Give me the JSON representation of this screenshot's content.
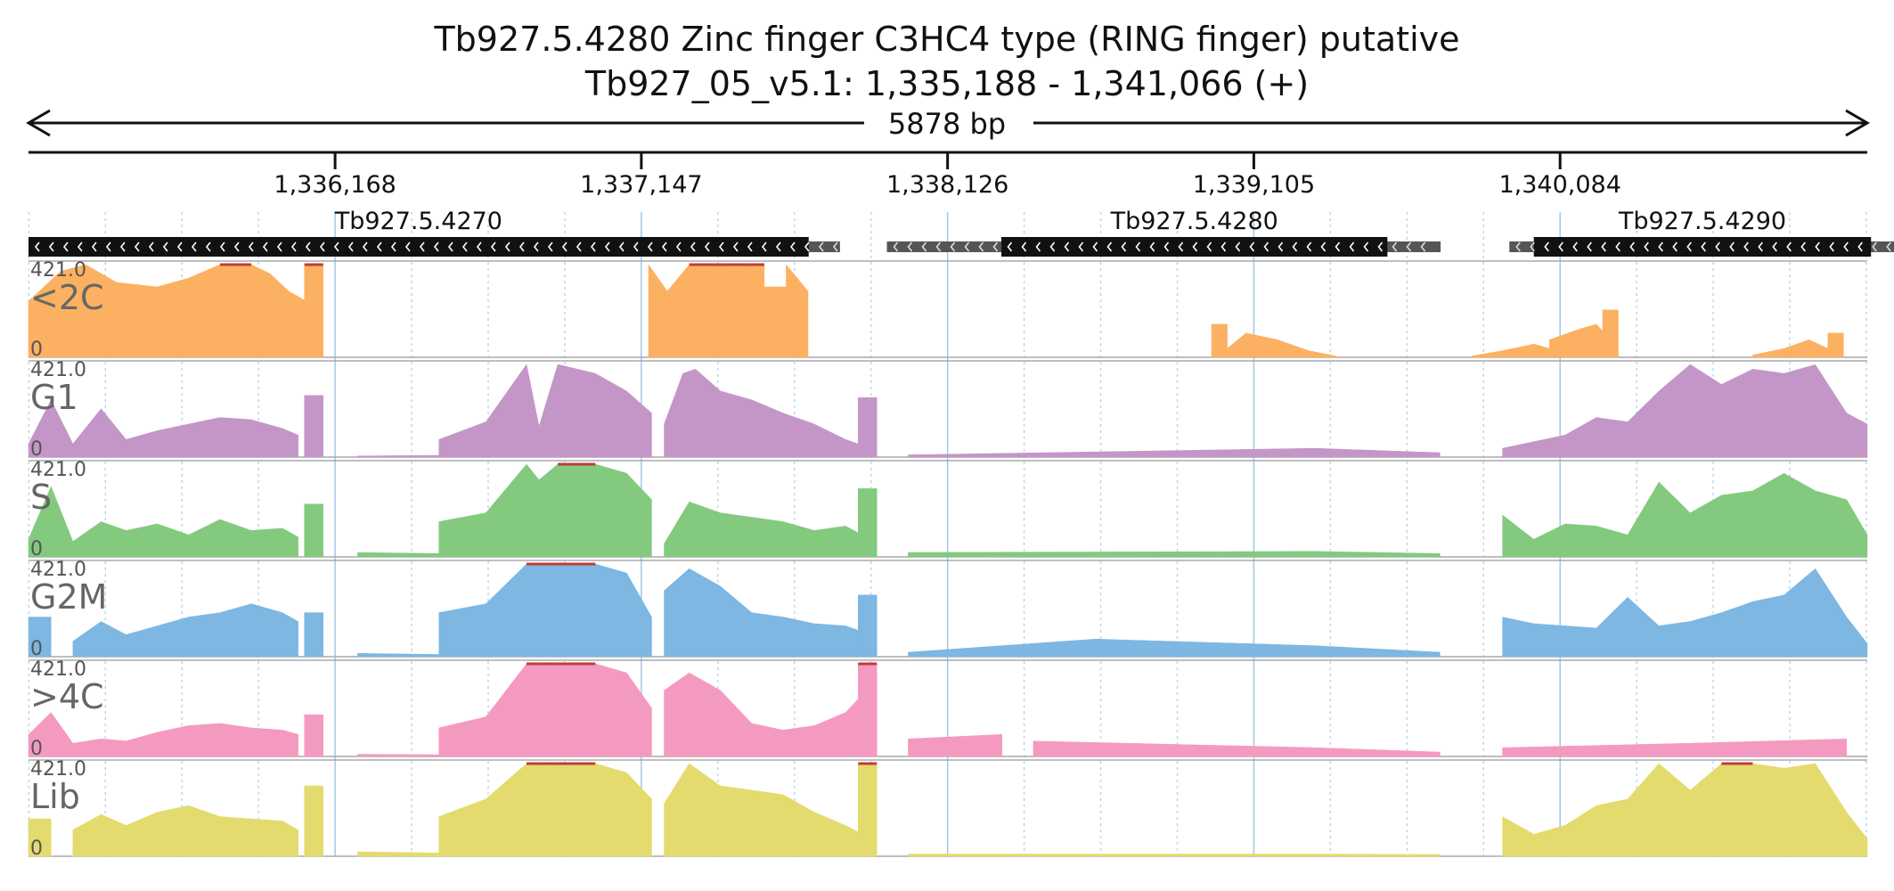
{
  "title_line1": "Tb927.5.4280  Zinc finger  C3HC4 type (RING finger)  putative",
  "title_line2": "Tb927_05_v5.1: 1,335,188 - 1,341,066 (+)",
  "span_label": "5878 bp",
  "chart_data": {
    "type": "area",
    "region_start": 1335188,
    "region_end": 1341066,
    "tick_labels": [
      "1,336,168",
      "1,337,147",
      "1,338,126",
      "1,339,105",
      "1,340,084"
    ],
    "tick_positions": [
      1336168,
      1337147,
      1338126,
      1339105,
      1340084
    ],
    "grid": true,
    "ylim": [
      0,
      421.0
    ],
    "y_top_label": "421.0",
    "y_bottom_label": "0",
    "genes": [
      {
        "name": "Tb927.5.4270",
        "start": 1335188,
        "end": 1337682,
        "utr_end": 1337782,
        "strand": "-"
      },
      {
        "name": "Tb927.5.4280",
        "start": 1338298,
        "end": 1339532,
        "utr_start": 1337932,
        "utr_end": 1339702,
        "strand": "-"
      },
      {
        "name": "Tb927.5.4290",
        "start": 1340000,
        "end": 1341078,
        "utr_start": 1339922,
        "utr_end": 1341176,
        "strand": "-"
      }
    ],
    "tracks": [
      {
        "name": "<2C",
        "color": "#fbb161",
        "segments": [
          {
            "x": [
              1335188,
              1335290,
              1335370,
              1335470,
              1335600,
              1335700,
              1335800,
              1335900,
              1335960,
              1336020,
              1336070
            ],
            "y": [
              255,
              390,
              421,
              340,
              320,
              360,
              421,
              421,
              380,
              300,
              260
            ]
          },
          {
            "x": [
              1336070,
              1336130
            ],
            "y": [
              421,
              421
            ]
          },
          {
            "x": [
              1337170,
              1337230,
              1337300,
              1337400,
              1337500,
              1337540
            ],
            "y": [
              421,
              300,
              421,
              421,
              421,
              421
            ]
          },
          {
            "x": [
              1337540,
              1337610
            ],
            "y": [
              320,
              320
            ]
          },
          {
            "x": [
              1337610,
              1337680
            ],
            "y": [
              421,
              300
            ]
          },
          {
            "x": [
              1338970,
              1339020
            ],
            "y": [
              150,
              150
            ]
          },
          {
            "x": [
              1339020,
              1339080,
              1339180,
              1339280,
              1339370
            ],
            "y": [
              40,
              110,
              80,
              30,
              5
            ]
          },
          {
            "x": [
              1339800,
              1339900,
              1340000,
              1340050
            ],
            "y": [
              5,
              30,
              60,
              40
            ]
          },
          {
            "x": [
              1340050,
              1340150,
              1340200,
              1340220
            ],
            "y": [
              80,
              130,
              150,
              120
            ]
          },
          {
            "x": [
              1340220,
              1340270
            ],
            "y": [
              215,
              215
            ]
          },
          {
            "x": [
              1340700,
              1340800,
              1340880,
              1340940
            ],
            "y": [
              10,
              40,
              80,
              40
            ]
          },
          {
            "x": [
              1340940,
              1340990
            ],
            "y": [
              110,
              110
            ]
          }
        ]
      },
      {
        "name": "G1",
        "color": "#c496c8",
        "segments": [
          {
            "x": [
              1335188,
              1335260,
              1335330,
              1335420,
              1335500,
              1335600,
              1335700,
              1335800,
              1335900,
              1336000,
              1336050
            ],
            "y": [
              60,
              260,
              60,
              220,
              80,
              120,
              150,
              180,
              170,
              130,
              100
            ]
          },
          {
            "x": [
              1336070,
              1336130
            ],
            "y": [
              280,
              280
            ]
          },
          {
            "x": [
              1336240,
              1336500
            ],
            "y": [
              5,
              8
            ]
          },
          {
            "x": [
              1336500,
              1336650,
              1336780,
              1336820,
              1336880,
              1337000,
              1337100,
              1337180
            ],
            "y": [
              80,
              160,
              421,
              140,
              421,
              380,
              300,
              200
            ]
          },
          {
            "x": [
              1337220,
              1337280,
              1337320,
              1337400,
              1337500,
              1337600,
              1337700,
              1337800,
              1337840
            ],
            "y": [
              150,
              380,
              400,
              300,
              260,
              200,
              150,
              80,
              60
            ]
          },
          {
            "x": [
              1337840,
              1337900
            ],
            "y": [
              270,
              270
            ]
          },
          {
            "x": [
              1338000,
              1339300,
              1339700
            ],
            "y": [
              10,
              40,
              20
            ]
          },
          {
            "x": [
              1339900,
              1340100,
              1340200,
              1340300,
              1340400,
              1340500,
              1340600,
              1340700,
              1340800,
              1340900,
              1341000,
              1341066
            ],
            "y": [
              40,
              100,
              180,
              160,
              300,
              421,
              330,
              400,
              380,
              420,
              200,
              150
            ]
          }
        ]
      },
      {
        "name": "S",
        "color": "#83ca7f",
        "segments": [
          {
            "x": [
              1335188,
              1335260,
              1335330,
              1335420,
              1335500,
              1335600,
              1335700,
              1335800,
              1335900,
              1336000,
              1336050
            ],
            "y": [
              80,
              320,
              70,
              160,
              120,
              150,
              100,
              170,
              120,
              130,
              90
            ]
          },
          {
            "x": [
              1336070,
              1336130
            ],
            "y": [
              240,
              240
            ]
          },
          {
            "x": [
              1336240,
              1336500
            ],
            "y": [
              20,
              15
            ]
          },
          {
            "x": [
              1336500,
              1336650,
              1336780,
              1336820,
              1336880,
              1337000,
              1337100,
              1337180
            ],
            "y": [
              160,
              200,
              421,
              350,
              421,
              421,
              380,
              260
            ]
          },
          {
            "x": [
              1337220,
              1337300,
              1337400,
              1337500,
              1337600,
              1337700,
              1337800,
              1337840
            ],
            "y": [
              60,
              250,
              200,
              180,
              160,
              120,
              140,
              110
            ]
          },
          {
            "x": [
              1337840,
              1337900
            ],
            "y": [
              310,
              310
            ]
          },
          {
            "x": [
              1338000,
              1339300,
              1339700
            ],
            "y": [
              20,
              25,
              15
            ]
          },
          {
            "x": [
              1339900,
              1340000,
              1340100,
              1340200,
              1340300,
              1340400,
              1340500,
              1340600,
              1340700,
              1340800,
              1340900,
              1341000,
              1341066
            ],
            "y": [
              190,
              80,
              150,
              140,
              100,
              340,
              200,
              280,
              300,
              380,
              300,
              260,
              100
            ]
          }
        ]
      },
      {
        "name": "G2M",
        "color": "#7db7e2",
        "segments": [
          {
            "x": [
              1335188,
              1335260
            ],
            "y": [
              180,
              180
            ]
          },
          {
            "x": [
              1335330,
              1335420,
              1335500,
              1335600,
              1335700,
              1335800,
              1335900,
              1336000,
              1336050
            ],
            "y": [
              70,
              160,
              100,
              140,
              180,
              200,
              240,
              200,
              160
            ]
          },
          {
            "x": [
              1336070,
              1336130
            ],
            "y": [
              200,
              200
            ]
          },
          {
            "x": [
              1336240,
              1336500
            ],
            "y": [
              15,
              10
            ]
          },
          {
            "x": [
              1336500,
              1336650,
              1336780,
              1336820,
              1336880,
              1337000,
              1337100,
              1337180
            ],
            "y": [
              200,
              240,
              421,
              421,
              421,
              421,
              380,
              180
            ]
          },
          {
            "x": [
              1337220,
              1337300,
              1337400,
              1337500,
              1337600,
              1337700,
              1337800,
              1337840
            ],
            "y": [
              300,
              400,
              320,
              200,
              180,
              150,
              140,
              120
            ]
          },
          {
            "x": [
              1337840,
              1337900
            ],
            "y": [
              280,
              280
            ]
          },
          {
            "x": [
              1338000,
              1338600,
              1339300,
              1339700
            ],
            "y": [
              20,
              80,
              50,
              20
            ]
          },
          {
            "x": [
              1339900,
              1340000,
              1340100,
              1340200,
              1340300,
              1340400,
              1340500,
              1340600,
              1340700,
              1340800,
              1340900,
              1341000,
              1341066
            ],
            "y": [
              180,
              150,
              140,
              130,
              270,
              140,
              160,
              200,
              250,
              280,
              400,
              180,
              60
            ]
          }
        ]
      },
      {
        "name": ">4C",
        "color": "#f49ac1",
        "segments": [
          {
            "x": [
              1335188,
              1335260,
              1335330,
              1335420,
              1335500,
              1335600,
              1335700,
              1335800,
              1335900,
              1336000,
              1336050
            ],
            "y": [
              100,
              200,
              60,
              80,
              70,
              110,
              140,
              150,
              130,
              120,
              100
            ]
          },
          {
            "x": [
              1336070,
              1336130
            ],
            "y": [
              190,
              190
            ]
          },
          {
            "x": [
              1336240,
              1336500
            ],
            "y": [
              10,
              8
            ]
          },
          {
            "x": [
              1336500,
              1336650,
              1336780,
              1336820,
              1336880,
              1337000,
              1337100,
              1337180
            ],
            "y": [
              130,
              180,
              421,
              421,
              421,
              421,
              380,
              220
            ]
          },
          {
            "x": [
              1337220,
              1337300,
              1337400,
              1337500,
              1337600,
              1337700,
              1337800,
              1337840
            ],
            "y": [
              300,
              380,
              300,
              150,
              120,
              140,
              200,
              260
            ]
          },
          {
            "x": [
              1337840,
              1337900
            ],
            "y": [
              421,
              421
            ]
          },
          {
            "x": [
              1338000,
              1338300
            ],
            "y": [
              80,
              100
            ]
          },
          {
            "x": [
              1338400,
              1339300,
              1339700
            ],
            "y": [
              70,
              40,
              20
            ]
          },
          {
            "x": [
              1339900,
              1340500,
              1341000
            ],
            "y": [
              40,
              60,
              80
            ]
          }
        ]
      },
      {
        "name": "Lib",
        "color": "#e3db6d",
        "segments": [
          {
            "x": [
              1335188,
              1335260
            ],
            "y": [
              170,
              170
            ]
          },
          {
            "x": [
              1335330,
              1335420,
              1335500,
              1335600,
              1335700,
              1335800,
              1335900,
              1336000,
              1336050
            ],
            "y": [
              120,
              190,
              140,
              200,
              230,
              180,
              170,
              160,
              120
            ]
          },
          {
            "x": [
              1336070,
              1336130
            ],
            "y": [
              320,
              320
            ]
          },
          {
            "x": [
              1336240,
              1336500
            ],
            "y": [
              20,
              15
            ]
          },
          {
            "x": [
              1336500,
              1336650,
              1336780,
              1336820,
              1336880,
              1337000,
              1337100,
              1337180
            ],
            "y": [
              180,
              260,
              421,
              421,
              421,
              421,
              380,
              260
            ]
          },
          {
            "x": [
              1337220,
              1337300,
              1337400,
              1337500,
              1337600,
              1337700,
              1337800,
              1337840
            ],
            "y": [
              240,
              421,
              320,
              300,
              280,
              200,
              140,
              110
            ]
          },
          {
            "x": [
              1337840,
              1337900
            ],
            "y": [
              421,
              421
            ]
          },
          {
            "x": [
              1338000,
              1339300,
              1339700
            ],
            "y": [
              10,
              10,
              8
            ]
          },
          {
            "x": [
              1339900,
              1340000,
              1340100,
              1340200,
              1340300,
              1340400,
              1340500,
              1340600,
              1340700,
              1340800,
              1340900,
              1341000,
              1341066
            ],
            "y": [
              180,
              100,
              140,
              230,
              260,
              421,
              300,
              421,
              421,
              400,
              421,
              200,
              80
            ]
          }
        ]
      }
    ]
  }
}
